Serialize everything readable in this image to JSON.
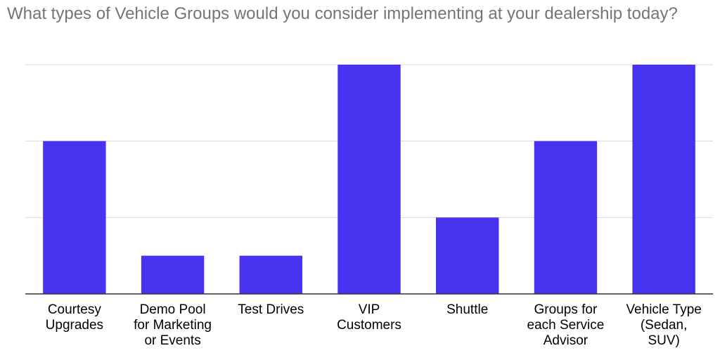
{
  "chart_data": {
    "type": "bar",
    "title": "What types of Vehicle Groups would you consider implementing at your dealership today?",
    "categories": [
      [
        "Courtesy",
        "Upgrades"
      ],
      [
        "Demo Pool",
        "for Marketing",
        "or Events"
      ],
      [
        "Test Drives"
      ],
      [
        "VIP",
        "Customers"
      ],
      [
        "Shuttle"
      ],
      [
        "Groups for",
        "each Service",
        "Advisor"
      ],
      [
        "Vehicle Type",
        "(Sedan,",
        "SUV)"
      ]
    ],
    "values": [
      2,
      0.5,
      0.5,
      3,
      1,
      2,
      3
    ],
    "ylim": [
      0,
      3
    ],
    "gridlines": [
      1,
      2,
      3
    ],
    "grid": true,
    "legend": "none",
    "bar_color": "#4833F0"
  }
}
